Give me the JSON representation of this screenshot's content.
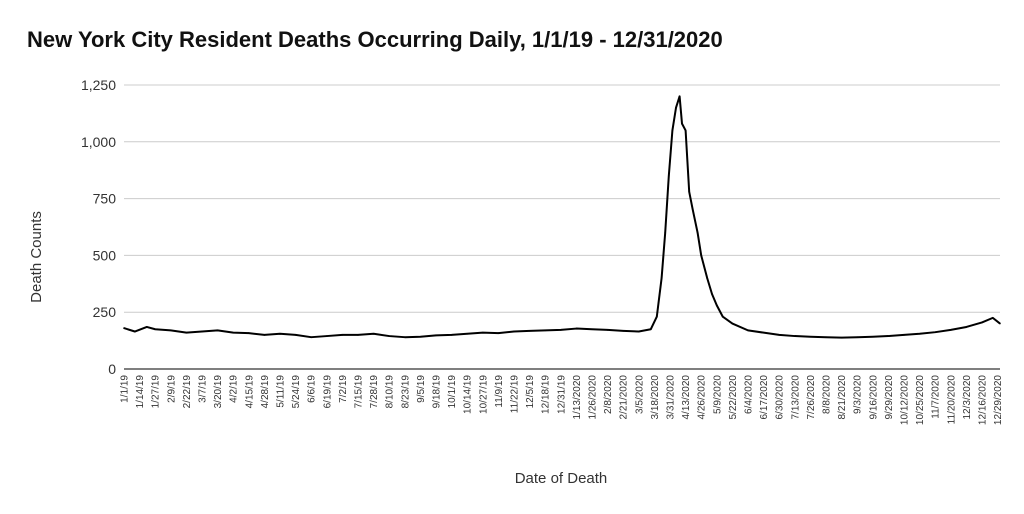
{
  "chart_data": {
    "type": "line",
    "title": "New York City Resident Deaths Occurring Daily, 1/1/19 - 12/31/2020",
    "xlabel": "Date of Death",
    "ylabel": "Death Counts",
    "ylim": [
      0,
      1250
    ],
    "yticks": [
      "0",
      "250",
      "500",
      "750",
      "1,000",
      "1,250"
    ],
    "ytick_values": [
      0,
      250,
      500,
      750,
      1000,
      1250
    ],
    "grid": true,
    "x_range": [
      "1/1/19",
      "12/31/2020"
    ],
    "xtick_labels": [
      "1/1/19",
      "1/14/19",
      "1/27/19",
      "2/9/19",
      "2/22/19",
      "3/7/19",
      "3/20/19",
      "4/2/19",
      "4/15/19",
      "4/28/19",
      "5/11/19",
      "5/24/19",
      "6/6/19",
      "6/19/19",
      "7/2/19",
      "7/15/19",
      "7/28/19",
      "8/10/19",
      "8/23/19",
      "9/5/19",
      "9/18/19",
      "10/1/19",
      "10/14/19",
      "10/27/19",
      "11/9/19",
      "11/22/19",
      "12/5/19",
      "12/18/19",
      "12/31/19",
      "1/13/2020",
      "1/26/2020",
      "2/8/2020",
      "2/21/2020",
      "3/5/2020",
      "3/18/2020",
      "3/31/2020",
      "4/13/2020",
      "4/26/2020",
      "5/9/2020",
      "5/22/2020",
      "6/4/2020",
      "6/17/2020",
      "6/30/2020",
      "7/13/2020",
      "7/26/2020",
      "8/8/2020",
      "8/21/2020",
      "9/3/2020",
      "9/16/2020",
      "9/29/2020",
      "10/12/2020",
      "10/25/2020",
      "11/7/2020",
      "11/20/2020",
      "12/3/2020",
      "12/16/2020",
      "12/29/2020"
    ],
    "series": [
      {
        "color": "#000000",
        "points": [
          [
            "1/1/19",
            180
          ],
          [
            "1/10/19",
            165
          ],
          [
            "1/20/19",
            185
          ],
          [
            "1/27/19",
            175
          ],
          [
            "2/9/19",
            170
          ],
          [
            "2/22/19",
            160
          ],
          [
            "3/7/19",
            165
          ],
          [
            "3/20/19",
            170
          ],
          [
            "4/2/19",
            160
          ],
          [
            "4/15/19",
            158
          ],
          [
            "4/28/19",
            150
          ],
          [
            "5/11/19",
            155
          ],
          [
            "5/24/19",
            150
          ],
          [
            "6/6/19",
            140
          ],
          [
            "6/19/19",
            145
          ],
          [
            "7/2/19",
            150
          ],
          [
            "7/15/19",
            150
          ],
          [
            "7/28/19",
            155
          ],
          [
            "8/10/19",
            145
          ],
          [
            "8/23/19",
            140
          ],
          [
            "9/5/19",
            142
          ],
          [
            "9/18/19",
            148
          ],
          [
            "10/1/19",
            150
          ],
          [
            "10/14/19",
            155
          ],
          [
            "10/27/19",
            160
          ],
          [
            "11/9/19",
            158
          ],
          [
            "11/22/19",
            165
          ],
          [
            "12/5/19",
            168
          ],
          [
            "12/18/19",
            170
          ],
          [
            "12/31/19",
            172
          ],
          [
            "1/13/2020",
            178
          ],
          [
            "1/26/2020",
            175
          ],
          [
            "2/8/2020",
            172
          ],
          [
            "2/21/2020",
            168
          ],
          [
            "3/5/2020",
            165
          ],
          [
            "3/15/2020",
            175
          ],
          [
            "3/20/2020",
            230
          ],
          [
            "3/24/2020",
            400
          ],
          [
            "3/27/2020",
            600
          ],
          [
            "3/30/2020",
            850
          ],
          [
            "4/2/2020",
            1050
          ],
          [
            "4/5/2020",
            1150
          ],
          [
            "4/8/2020",
            1200
          ],
          [
            "4/10/2020",
            1080
          ],
          [
            "4/13/2020",
            1050
          ],
          [
            "4/16/2020",
            780
          ],
          [
            "4/19/2020",
            700
          ],
          [
            "4/23/2020",
            600
          ],
          [
            "4/26/2020",
            500
          ],
          [
            "5/1/2020",
            400
          ],
          [
            "5/5/2020",
            330
          ],
          [
            "5/9/2020",
            280
          ],
          [
            "5/14/2020",
            230
          ],
          [
            "5/22/2020",
            200
          ],
          [
            "6/4/2020",
            170
          ],
          [
            "6/17/2020",
            160
          ],
          [
            "6/30/2020",
            150
          ],
          [
            "7/13/2020",
            145
          ],
          [
            "7/26/2020",
            142
          ],
          [
            "8/8/2020",
            140
          ],
          [
            "8/21/2020",
            138
          ],
          [
            "9/3/2020",
            140
          ],
          [
            "9/16/2020",
            142
          ],
          [
            "9/29/2020",
            145
          ],
          [
            "10/12/2020",
            150
          ],
          [
            "10/25/2020",
            155
          ],
          [
            "11/7/2020",
            162
          ],
          [
            "11/20/2020",
            172
          ],
          [
            "12/3/2020",
            185
          ],
          [
            "12/16/2020",
            205
          ],
          [
            "12/25/2020",
            225
          ],
          [
            "12/31/2020",
            200
          ]
        ]
      }
    ]
  }
}
